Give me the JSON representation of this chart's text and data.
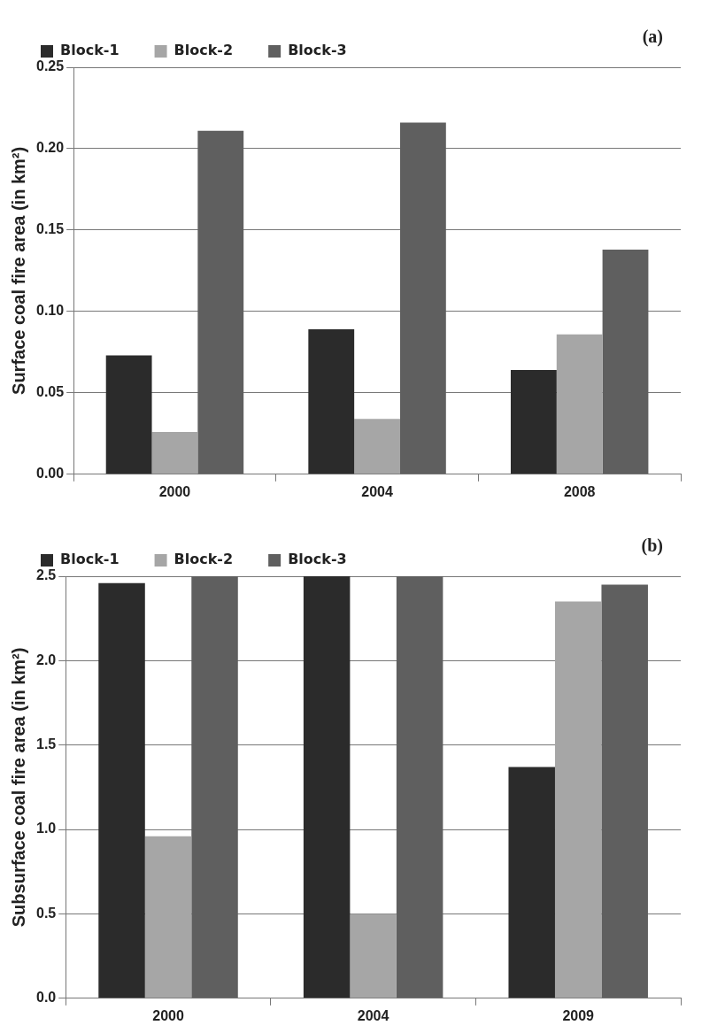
{
  "chart_data": [
    {
      "type": "bar",
      "ylabel": "Surface coal fire area (in km²)",
      "annotations": [
        "(a)"
      ],
      "categories": [
        "2000",
        "2004",
        "2008"
      ],
      "series": [
        {
          "name": "Block-1",
          "color": "#2b2b2b",
          "values": [
            0.073,
            0.089,
            0.064
          ]
        },
        {
          "name": "Block-2",
          "color": "#a6a6a6",
          "values": [
            0.026,
            0.034,
            0.086
          ]
        },
        {
          "name": "Block-3",
          "color": "#5f5f5f",
          "values": [
            0.211,
            0.216,
            0.138
          ]
        }
      ],
      "ylim": [
        0,
        0.25
      ],
      "yticks": [
        {
          "value": 0,
          "label": "0.00"
        },
        {
          "value": 0.05,
          "label": "0.05"
        },
        {
          "value": 0.1,
          "label": "0.10"
        },
        {
          "value": 0.15,
          "label": "0.15"
        },
        {
          "value": 0.2,
          "label": "0.20"
        },
        {
          "value": 0.25,
          "label": "0.25"
        }
      ],
      "grid": "y",
      "legend": "top"
    },
    {
      "type": "bar",
      "ylabel": "Subsurface coal fire area (in km²)",
      "annotations": [
        "(b)"
      ],
      "categories": [
        "2000",
        "2004",
        "2009"
      ],
      "series": [
        {
          "name": "Block-1",
          "color": "#2b2b2b",
          "values": [
            2.46,
            2.5,
            1.37
          ]
        },
        {
          "name": "Block-2",
          "color": "#a6a6a6",
          "values": [
            0.96,
            0.5,
            2.35
          ]
        },
        {
          "name": "Block-3",
          "color": "#5f5f5f",
          "values": [
            2.5,
            2.5,
            2.45
          ]
        }
      ],
      "ylim": [
        0,
        2.5
      ],
      "yticks": [
        {
          "value": 0,
          "label": "0.0"
        },
        {
          "value": 0.5,
          "label": "0.5"
        },
        {
          "value": 1,
          "label": "1.0"
        },
        {
          "value": 1.5,
          "label": "1.5"
        },
        {
          "value": 2,
          "label": "2.0"
        },
        {
          "value": 2.5,
          "label": "2.5"
        }
      ],
      "grid": "y",
      "legend": "top"
    }
  ]
}
